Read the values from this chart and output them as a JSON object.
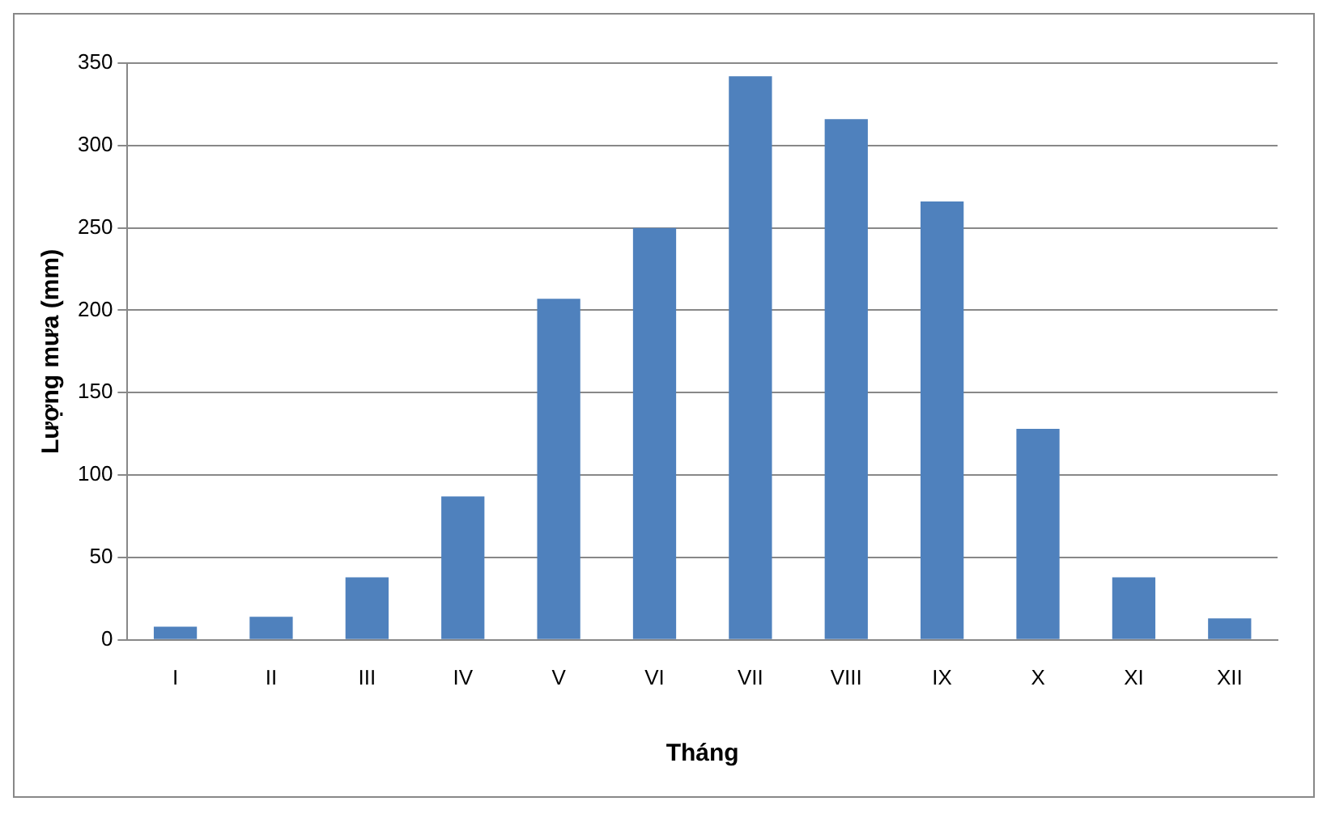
{
  "chart_data": {
    "type": "bar",
    "xlabel": "Tháng",
    "ylabel": "Lượng mưa (mm)",
    "categories": [
      "I",
      "II",
      "III",
      "IV",
      "V",
      "VI",
      "VII",
      "VIII",
      "IX",
      "X",
      "XI",
      "XII"
    ],
    "values": [
      8,
      14,
      38,
      87,
      207,
      250,
      342,
      316,
      266,
      128,
      38,
      13
    ],
    "color": "#4f81bd",
    "ylim": [
      0,
      350
    ],
    "yticks": [
      0,
      50,
      100,
      150,
      200,
      250,
      300,
      350
    ],
    "grid": "y",
    "legend": false
  }
}
